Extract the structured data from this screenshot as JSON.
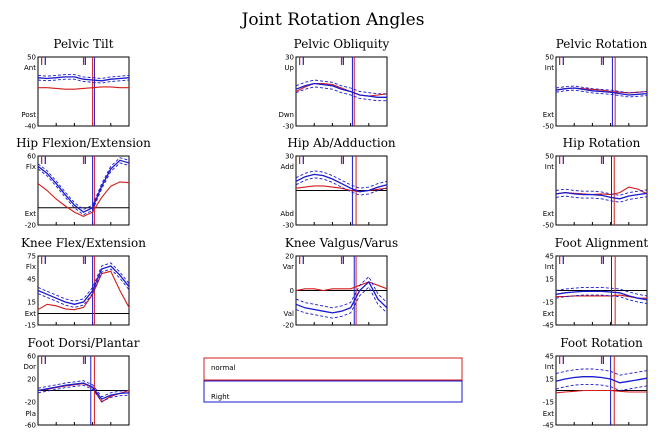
{
  "title": "Joint Rotation Angles",
  "colors": {
    "right": "#1a1ad0",
    "normal": "#d41c1c",
    "frame": "#000000"
  },
  "legend": {
    "normal_label": "normal",
    "right_label": "Right"
  },
  "chart_data": [
    {
      "type": "line",
      "title": "Pelvic Tilt",
      "ylim": [
        -40,
        50
      ],
      "ytick_values": [
        50,
        -40
      ],
      "ytick_labels": [
        "50",
        "-40"
      ],
      "ydir": [
        "Ant",
        "Post"
      ],
      "hline": null,
      "events": {
        "right_fo": 0.62,
        "normal_fo": 0.6
      },
      "x": [
        0,
        10,
        20,
        30,
        40,
        50,
        60,
        70,
        80,
        90,
        100
      ],
      "series": [
        {
          "role": "normal",
          "values": [
            10,
            10,
            9,
            8,
            8,
            9,
            10,
            11,
            11,
            10,
            10
          ]
        },
        {
          "role": "right",
          "values": [
            23,
            22,
            23,
            24,
            24,
            21,
            20,
            19,
            21,
            22,
            23
          ]
        },
        {
          "role": "right-upper",
          "values": [
            26,
            25,
            26,
            27,
            27,
            24,
            23,
            22,
            24,
            25,
            26
          ]
        },
        {
          "role": "right-lower",
          "values": [
            20,
            19,
            20,
            21,
            21,
            18,
            17,
            16,
            18,
            19,
            20
          ]
        }
      ]
    },
    {
      "type": "line",
      "title": "Pelvic Obliquity",
      "ylim": [
        -30,
        30
      ],
      "ytick_values": [
        30,
        -30
      ],
      "ytick_labels": [
        "30",
        "-30"
      ],
      "ydir": [
        "Up",
        "Dwn"
      ],
      "hline": null,
      "events": {
        "right_fo": 0.62,
        "normal_fo": 0.64
      },
      "x": [
        0,
        10,
        20,
        30,
        40,
        50,
        60,
        70,
        80,
        90,
        100
      ],
      "series": [
        {
          "role": "normal",
          "values": [
            0,
            4,
            7,
            7,
            6,
            3,
            0,
            -3,
            -4,
            -3,
            -2
          ]
        },
        {
          "role": "right",
          "values": [
            2,
            5,
            7,
            6,
            5,
            2,
            0,
            -3,
            -4,
            -5,
            -5
          ]
        },
        {
          "role": "right-upper",
          "values": [
            5,
            8,
            10,
            9,
            8,
            5,
            3,
            0,
            -1,
            -2,
            -2
          ]
        },
        {
          "role": "right-lower",
          "values": [
            -1,
            2,
            4,
            3,
            2,
            -1,
            -3,
            -6,
            -7,
            -8,
            -8
          ]
        }
      ]
    },
    {
      "type": "line",
      "title": "Pelvic Rotation",
      "ylim": [
        -50,
        50
      ],
      "ytick_values": [
        50,
        -50
      ],
      "ytick_labels": [
        "50",
        "-50"
      ],
      "ydir": [
        "Int",
        "Ext"
      ],
      "hline": null,
      "events": {
        "right_fo": 0.62,
        "normal_fo": 0.65
      },
      "x": [
        0,
        10,
        20,
        30,
        40,
        50,
        60,
        70,
        80,
        90,
        100
      ],
      "series": [
        {
          "role": "normal",
          "values": [
            2,
            4,
            5,
            4,
            3,
            2,
            0,
            -1,
            -2,
            -1,
            0
          ]
        },
        {
          "role": "right",
          "values": [
            2,
            4,
            5,
            3,
            1,
            0,
            -1,
            -3,
            -5,
            -4,
            -3
          ]
        },
        {
          "role": "right-upper",
          "values": [
            5,
            7,
            8,
            6,
            4,
            3,
            2,
            0,
            -2,
            -1,
            0
          ]
        },
        {
          "role": "right-lower",
          "values": [
            -1,
            1,
            2,
            0,
            -2,
            -3,
            -4,
            -6,
            -8,
            -7,
            -6
          ]
        }
      ]
    },
    {
      "type": "line",
      "title": "Hip Flexion/Extension",
      "ylim": [
        -20,
        60
      ],
      "ytick_values": [
        60,
        -20
      ],
      "ytick_labels": [
        "60",
        "-20"
      ],
      "ydir": [
        "Flx",
        "Ext"
      ],
      "hline": 0,
      "events": {
        "right_fo": 0.6,
        "normal_fo": 0.62
      },
      "x": [
        0,
        10,
        20,
        30,
        40,
        50,
        60,
        70,
        80,
        90,
        100
      ],
      "series": [
        {
          "role": "normal",
          "values": [
            28,
            20,
            10,
            2,
            -5,
            -10,
            -5,
            12,
            25,
            30,
            29
          ]
        },
        {
          "role": "right",
          "values": [
            48,
            40,
            28,
            15,
            3,
            -5,
            0,
            25,
            45,
            55,
            52
          ]
        },
        {
          "role": "right-upper",
          "values": [
            51,
            43,
            31,
            18,
            6,
            -2,
            3,
            28,
            48,
            58,
            55
          ]
        },
        {
          "role": "right-lower",
          "values": [
            45,
            37,
            25,
            12,
            0,
            -8,
            -3,
            22,
            42,
            52,
            49
          ]
        }
      ]
    },
    {
      "type": "line",
      "title": "Hip Ab/Adduction",
      "ylim": [
        -30,
        30
      ],
      "ytick_values": [
        30,
        -30
      ],
      "ytick_labels": [
        "30",
        "-30"
      ],
      "ydir": [
        "Add",
        "Abd"
      ],
      "hline": 0,
      "events": {
        "right_fo": 0.62,
        "normal_fo": 0.66
      },
      "x": [
        0,
        10,
        20,
        30,
        40,
        50,
        60,
        70,
        80,
        90,
        100
      ],
      "series": [
        {
          "role": "normal",
          "values": [
            2,
            3,
            4,
            4,
            3,
            2,
            0,
            -1,
            0,
            1,
            2
          ]
        },
        {
          "role": "right",
          "values": [
            8,
            12,
            14,
            13,
            10,
            6,
            2,
            -1,
            0,
            3,
            5
          ]
        },
        {
          "role": "right-upper",
          "values": [
            11,
            15,
            17,
            16,
            13,
            9,
            5,
            2,
            3,
            6,
            8
          ]
        },
        {
          "role": "right-lower",
          "values": [
            5,
            9,
            11,
            10,
            7,
            3,
            -1,
            -4,
            -3,
            0,
            2
          ]
        }
      ]
    },
    {
      "type": "line",
      "title": "Hip Rotation",
      "ylim": [
        -50,
        50
      ],
      "ytick_values": [
        50,
        -50
      ],
      "ytick_labels": [
        "50",
        "-50"
      ],
      "ydir": [
        "Int",
        "Ext"
      ],
      "hline": null,
      "events": {
        "right_fo": 0.61,
        "normal_fo": 0.64
      },
      "x": [
        0,
        10,
        20,
        30,
        40,
        50,
        60,
        70,
        80,
        90,
        100
      ],
      "series": [
        {
          "role": "normal",
          "values": [
            -5,
            -3,
            -4,
            -5,
            -6,
            -5,
            -6,
            -3,
            5,
            2,
            -5
          ]
        },
        {
          "role": "right",
          "values": [
            -5,
            -3,
            -5,
            -6,
            -6,
            -7,
            -10,
            -12,
            -8,
            -6,
            -4
          ]
        },
        {
          "role": "right-upper",
          "values": [
            0,
            2,
            0,
            -1,
            -1,
            -2,
            -5,
            -7,
            -3,
            -1,
            1
          ]
        },
        {
          "role": "right-lower",
          "values": [
            -10,
            -8,
            -10,
            -11,
            -11,
            -12,
            -15,
            -17,
            -13,
            -11,
            -9
          ]
        }
      ]
    },
    {
      "type": "line",
      "title": "Knee Flex/Extension",
      "ylim": [
        -15,
        75
      ],
      "ytick_values": [
        75,
        45,
        15,
        -15
      ],
      "ytick_labels": [
        "75",
        "45",
        "15",
        "-15"
      ],
      "ydir": [
        "Flx",
        "Ext"
      ],
      "hline": 0,
      "events": {
        "right_fo": 0.6,
        "normal_fo": 0.62
      },
      "x": [
        0,
        10,
        20,
        30,
        40,
        50,
        60,
        70,
        80,
        90,
        100
      ],
      "series": [
        {
          "role": "normal",
          "values": [
            5,
            12,
            10,
            6,
            5,
            8,
            25,
            52,
            55,
            30,
            8
          ]
        },
        {
          "role": "right",
          "values": [
            30,
            25,
            20,
            15,
            12,
            15,
            30,
            58,
            62,
            50,
            35
          ]
        },
        {
          "role": "right-upper",
          "values": [
            34,
            29,
            24,
            19,
            16,
            19,
            34,
            62,
            66,
            54,
            39
          ]
        },
        {
          "role": "right-lower",
          "values": [
            26,
            21,
            16,
            11,
            8,
            11,
            26,
            54,
            58,
            46,
            31
          ]
        }
      ]
    },
    {
      "type": "line",
      "title": "Knee Valgus/Varus",
      "ylim": [
        -20,
        20
      ],
      "ytick_values": [
        20,
        0,
        -20
      ],
      "ytick_labels": [
        "20",
        "0",
        "-20"
      ],
      "ydir": [
        "Var",
        "Val"
      ],
      "hline": 0,
      "events": {
        "right_fo": 0.64,
        "normal_fo": 0.66
      },
      "x": [
        0,
        10,
        20,
        30,
        40,
        50,
        60,
        70,
        80,
        90,
        100
      ],
      "series": [
        {
          "role": "normal",
          "values": [
            0,
            1,
            1,
            0,
            1,
            1,
            1,
            3,
            5,
            3,
            1
          ]
        },
        {
          "role": "right",
          "values": [
            -8,
            -10,
            -11,
            -12,
            -13,
            -12,
            -10,
            0,
            5,
            -5,
            -10
          ]
        },
        {
          "role": "right-upper",
          "values": [
            -5,
            -7,
            -8,
            -9,
            -10,
            -9,
            -7,
            3,
            8,
            -2,
            -7
          ]
        },
        {
          "role": "right-lower",
          "values": [
            -11,
            -13,
            -14,
            -15,
            -16,
            -15,
            -13,
            -3,
            2,
            -8,
            -13
          ]
        }
      ]
    },
    {
      "type": "line",
      "title": "Foot Alignment",
      "ylim": [
        -45,
        45
      ],
      "ytick_values": [
        45,
        15,
        -15,
        -45
      ],
      "ytick_labels": [
        "45",
        "15",
        "-15",
        "-45"
      ],
      "ydir": [
        "Int",
        "Ext"
      ],
      "hline": 0,
      "events": {
        "right_fo": 0.61,
        "normal_fo": 0.65
      },
      "x": [
        0,
        10,
        20,
        30,
        40,
        50,
        60,
        70,
        80,
        90,
        100
      ],
      "series": [
        {
          "role": "normal",
          "values": [
            -8,
            -8,
            -7,
            -7,
            -7,
            -7,
            -7,
            -6,
            -8,
            -10,
            -10
          ]
        },
        {
          "role": "right",
          "values": [
            -5,
            -3,
            -2,
            -1,
            -1,
            -1,
            -2,
            -3,
            -7,
            -10,
            -12
          ]
        },
        {
          "role": "right-upper",
          "values": [
            0,
            2,
            3,
            4,
            4,
            4,
            3,
            2,
            -2,
            -5,
            -7
          ]
        },
        {
          "role": "right-lower",
          "values": [
            -10,
            -8,
            -7,
            -6,
            -6,
            -6,
            -7,
            -8,
            -12,
            -15,
            -17
          ]
        }
      ]
    },
    {
      "type": "line",
      "title": "Foot Dorsi/Plantar",
      "ylim": [
        -60,
        60
      ],
      "ytick_values": [
        60,
        20,
        -20,
        -60
      ],
      "ytick_labels": [
        "60",
        "20",
        "-20",
        "-60"
      ],
      "ydir": [
        "Dor",
        "Pla"
      ],
      "hline": 0,
      "events": {
        "right_fo": 0.58,
        "normal_fo": 0.62
      },
      "x": [
        0,
        10,
        20,
        30,
        40,
        50,
        60,
        70,
        80,
        90,
        100
      ],
      "series": [
        {
          "role": "normal",
          "values": [
            0,
            2,
            5,
            8,
            10,
            12,
            5,
            -20,
            -10,
            -5,
            0
          ]
        },
        {
          "role": "right",
          "values": [
            0,
            3,
            6,
            9,
            11,
            13,
            6,
            -15,
            -8,
            -5,
            -4
          ]
        },
        {
          "role": "right-upper",
          "values": [
            4,
            7,
            10,
            13,
            15,
            17,
            10,
            -11,
            -4,
            -1,
            0
          ]
        },
        {
          "role": "right-lower",
          "values": [
            -4,
            -1,
            2,
            5,
            7,
            9,
            2,
            -19,
            -12,
            -9,
            -8
          ]
        }
      ]
    },
    {
      "type": "line",
      "title": "Foot Rotation",
      "ylim": [
        -45,
        45
      ],
      "ytick_values": [
        45,
        15,
        -15,
        -45
      ],
      "ytick_labels": [
        "45",
        "15",
        "-15",
        "-45"
      ],
      "ydir": [
        "Int",
        "Ext"
      ],
      "hline": 0,
      "events": {
        "right_fo": 0.6,
        "normal_fo": 0.64
      },
      "x": [
        0,
        10,
        20,
        30,
        40,
        50,
        60,
        70,
        80,
        90,
        100
      ],
      "series": [
        {
          "role": "normal",
          "values": [
            -3,
            -2,
            -1,
            0,
            0,
            0,
            0,
            -1,
            -2,
            -2,
            -2
          ]
        },
        {
          "role": "right",
          "values": [
            12,
            15,
            17,
            18,
            18,
            17,
            15,
            10,
            12,
            14,
            16
          ]
        },
        {
          "role": "right-upper",
          "values": [
            22,
            25,
            27,
            28,
            28,
            27,
            25,
            20,
            22,
            24,
            26
          ]
        },
        {
          "role": "right-lower",
          "values": [
            2,
            5,
            7,
            8,
            8,
            7,
            5,
            0,
            2,
            4,
            6
          ]
        }
      ]
    }
  ]
}
